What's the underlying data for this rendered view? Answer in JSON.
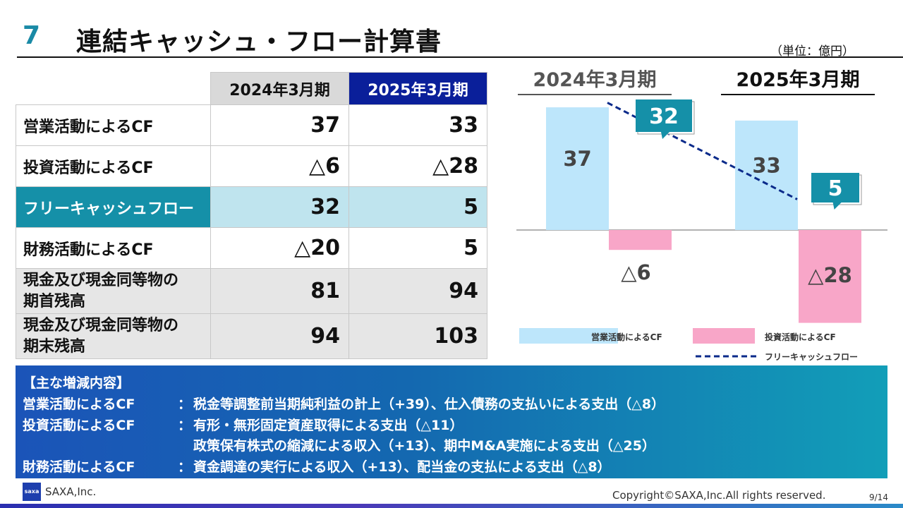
{
  "header": {
    "section_number": "7",
    "title": "連結キャッシュ・フロー計算書",
    "unit": "（単位：億円）"
  },
  "table": {
    "columns": [
      "2024年3月期",
      "2025年3月期"
    ],
    "rows": [
      {
        "label": "営業活動によるCF",
        "v2024": "37",
        "v2025": "33"
      },
      {
        "label": "投資活動によるCF",
        "v2024": "△6",
        "v2025": "△28"
      },
      {
        "label": "フリーキャッシュフロー",
        "v2024": "32",
        "v2025": "5"
      },
      {
        "label": "財務活動によるCF",
        "v2024": "△20",
        "v2025": "5"
      },
      {
        "label_line1": "現金及び現金同等物の",
        "label_line2": "期首残高",
        "v2024": "81",
        "v2025": "94"
      },
      {
        "label_line1": "現金及び現金同等物の",
        "label_line2": "期末残高",
        "v2024": "94",
        "v2025": "103"
      }
    ]
  },
  "chart_data": {
    "type": "bar",
    "categories": [
      "2024年3月期",
      "2025年3月期"
    ],
    "series": [
      {
        "name": "営業活動によるCF",
        "values": [
          37,
          33
        ],
        "labels": [
          "37",
          "33"
        ],
        "color": "#bde6fb"
      },
      {
        "name": "投資活動によるCF",
        "values": [
          -6,
          -28
        ],
        "labels": [
          "△6",
          "△28"
        ],
        "color": "#f8a6c8"
      },
      {
        "name": "フリーキャッシュフロー",
        "type": "line",
        "values": [
          32,
          5
        ],
        "labels": [
          "32",
          "5"
        ],
        "color": "#0a2a8a"
      }
    ],
    "callout_color": "#1590a8",
    "legend": "bottom"
  },
  "notes": {
    "heading": "【主な増減内容】",
    "rows": [
      {
        "category": "営業活動によるCF",
        "sep": "：",
        "text": "税金等調整前当期純利益の計上（+39）、仕入債務の支払いによる支出（△8）"
      },
      {
        "category": "投資活動によるCF",
        "sep": "：",
        "text": "有形・無形固定資産取得による支出（△11）"
      },
      {
        "category": "",
        "sep": "",
        "text": "政策保有株式の縮減による収入（+13）、期中M&A実施による支出（△25）"
      },
      {
        "category": "財務活動によるCF",
        "sep": "：",
        "text": "資金調達の実行による収入（+13）、配当金の支払による支出（△8）"
      }
    ]
  },
  "footer": {
    "logo_text": "saxa",
    "company": "SAXA,Inc.",
    "copyright": "Copyright©SAXA,Inc.All rights reserved.",
    "page": "9/14"
  }
}
